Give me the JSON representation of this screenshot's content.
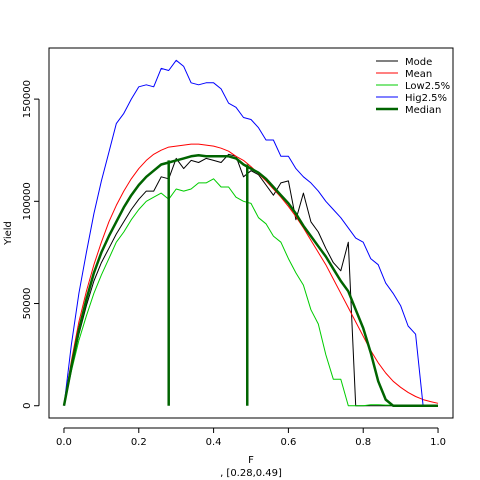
{
  "chart_data": {
    "type": "line",
    "xlabel": "F",
    "subtitle": ", [0.28,0.49]",
    "ylabel": "Yield",
    "xlim": [
      -0.04,
      1.04
    ],
    "ylim": [
      -6000,
      175000
    ],
    "xticks": [
      0.0,
      0.2,
      0.4,
      0.6,
      0.8,
      1.0
    ],
    "xtick_labels": [
      "0.0",
      "0.2",
      "0.4",
      "0.6",
      "0.8",
      "1.0"
    ],
    "yticks": [
      0,
      50000,
      100000,
      150000
    ],
    "ytick_labels": [
      "0",
      "50000",
      "100000",
      "150000"
    ],
    "grid": false,
    "legend_position": "top-right",
    "x": [
      0.0,
      0.02,
      0.04,
      0.06,
      0.08,
      0.1,
      0.12,
      0.14,
      0.16,
      0.18,
      0.2,
      0.22,
      0.24,
      0.26,
      0.28,
      0.3,
      0.32,
      0.34,
      0.36,
      0.38,
      0.4,
      0.42,
      0.44,
      0.46,
      0.48,
      0.5,
      0.52,
      0.54,
      0.56,
      0.58,
      0.6,
      0.62,
      0.64,
      0.66,
      0.68,
      0.7,
      0.72,
      0.74,
      0.76,
      0.78,
      0.8,
      0.82,
      0.84,
      0.86,
      0.88,
      0.9,
      0.92,
      0.94,
      0.96,
      0.98,
      1.0
    ],
    "series": [
      {
        "name": "Mode",
        "color": "#000000",
        "width": 1,
        "values": [
          0,
          18000,
          35000,
          49000,
          61000,
          70000,
          77000,
          84000,
          90000,
          96000,
          101000,
          105000,
          105000,
          112000,
          111000,
          121000,
          116000,
          120000,
          119000,
          121000,
          120000,
          119000,
          123000,
          122000,
          112000,
          115000,
          113000,
          108000,
          103000,
          109000,
          110000,
          91000,
          104000,
          90000,
          85000,
          77000,
          70000,
          66000,
          80000,
          0,
          0,
          0,
          0,
          0,
          0,
          0,
          0,
          0,
          0,
          0,
          0
        ]
      },
      {
        "name": "Mean",
        "color": "#ff0000",
        "width": 1,
        "values": [
          0,
          22000,
          41000,
          56000,
          69000,
          80000,
          90000,
          98000,
          105000,
          111000,
          116000,
          120000,
          123000,
          125000,
          126500,
          127000,
          127500,
          128000,
          128000,
          127500,
          127000,
          126000,
          124500,
          122000,
          120000,
          117000,
          113500,
          110000,
          106000,
          102000,
          97500,
          92500,
          87000,
          81000,
          75000,
          69000,
          62000,
          55000,
          48000,
          41000,
          34000,
          27000,
          21000,
          16000,
          12000,
          9000,
          6500,
          4500,
          3000,
          2000,
          1200
        ]
      },
      {
        "name": "Low2.5%",
        "color": "#00cc00",
        "width": 1,
        "values": [
          0,
          17000,
          32000,
          44000,
          55000,
          64000,
          72000,
          80000,
          85000,
          91000,
          96000,
          100000,
          102000,
          104000,
          101000,
          106000,
          105000,
          106000,
          109000,
          109000,
          111000,
          107000,
          107000,
          102000,
          100000,
          99000,
          92000,
          89000,
          83000,
          80000,
          72000,
          65000,
          59000,
          47000,
          40000,
          25000,
          13000,
          13000,
          0,
          0,
          0,
          500,
          500,
          300,
          300,
          0,
          0,
          0,
          0,
          0,
          0
        ]
      },
      {
        "name": "Hig2.5%",
        "color": "#0000ff",
        "width": 1,
        "values": [
          0,
          30000,
          55000,
          75000,
          94000,
          110000,
          124000,
          138000,
          143000,
          150000,
          156000,
          157000,
          156000,
          165000,
          164000,
          169000,
          166000,
          158000,
          157000,
          158000,
          158000,
          155000,
          148000,
          146000,
          141000,
          140000,
          136000,
          130000,
          130000,
          122000,
          122000,
          116000,
          112000,
          109000,
          105000,
          100000,
          96000,
          92000,
          87000,
          82000,
          80000,
          72000,
          69000,
          60000,
          55000,
          49000,
          39000,
          35000,
          0,
          0,
          0
        ]
      },
      {
        "name": "Median",
        "color": "#006400",
        "width": 2.5,
        "values": [
          0,
          19000,
          37000,
          52000,
          65000,
          75000,
          83000,
          90000,
          97000,
          103000,
          108000,
          112000,
          115000,
          118000,
          119000,
          120000,
          121000,
          122000,
          122500,
          122000,
          122000,
          122000,
          122000,
          121000,
          118000,
          116000,
          114000,
          111000,
          107000,
          103000,
          99000,
          94000,
          88000,
          83000,
          78000,
          73000,
          67000,
          61000,
          56000,
          47000,
          38000,
          26000,
          12000,
          3000,
          0,
          0,
          0,
          0,
          0,
          0,
          0
        ]
      }
    ],
    "vlines": [
      {
        "x": 0.28,
        "y": 120000,
        "color": "#006400"
      },
      {
        "x": 0.49,
        "y": 118000,
        "color": "#006400"
      }
    ]
  }
}
